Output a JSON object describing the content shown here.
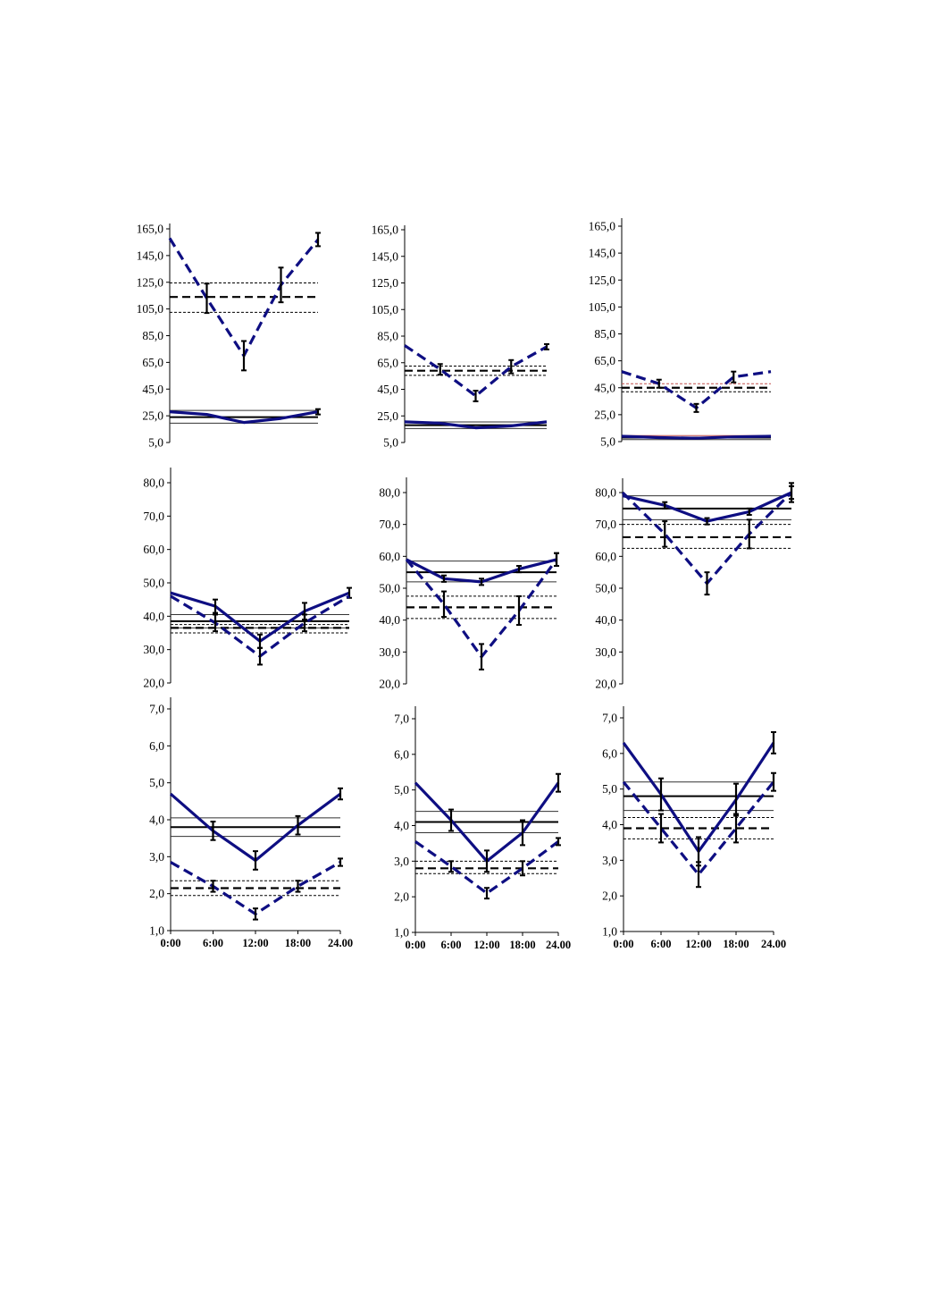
{
  "colors": {
    "series": "#0e0e82",
    "axis": "#000000",
    "ref": "#000000",
    "ref_alt": "#c0504d"
  },
  "x_tick_labels": [
    "0:00",
    "6:00",
    "12:00",
    "18:00",
    "24.00"
  ],
  "chart_data": [
    {
      "type": "line",
      "x": [
        0,
        6,
        12,
        18,
        24
      ],
      "ylim": [
        5,
        165
      ],
      "yticks": [
        "5,0",
        "25,0",
        "45,0",
        "65,0",
        "85,0",
        "105,0",
        "125,0",
        "145,0",
        "165,0"
      ],
      "series": [
        {
          "style": "dashed",
          "values": [
            158,
            113,
            70,
            123,
            157
          ],
          "err": [
            0,
            11,
            11,
            13,
            5
          ]
        },
        {
          "style": "solid",
          "values": [
            28,
            26,
            20,
            23,
            28
          ],
          "err": [
            0,
            0,
            0,
            0,
            2
          ]
        }
      ],
      "reference_lines": [
        {
          "value": 114,
          "style": "dashed-bold"
        },
        {
          "value": 124.5,
          "style": "dotted"
        },
        {
          "value": 102.5,
          "style": "dotted"
        },
        {
          "value": 24,
          "style": "solid-bold"
        },
        {
          "value": 29,
          "style": "solid-thin"
        },
        {
          "value": 19.5,
          "style": "solid-thin"
        }
      ]
    },
    {
      "type": "line",
      "x": [
        0,
        6,
        12,
        18,
        24
      ],
      "ylim": [
        5,
        165
      ],
      "yticks": [
        "5,0",
        "25,0",
        "45,0",
        "65,0",
        "85,0",
        "105,0",
        "125,0",
        "145,0",
        "165,0"
      ],
      "series": [
        {
          "style": "dashed",
          "values": [
            78,
            60,
            40,
            62,
            77
          ],
          "err": [
            0,
            4,
            4,
            5,
            2
          ]
        },
        {
          "style": "solid",
          "values": [
            20.5,
            19.5,
            16,
            17.5,
            20.5
          ],
          "err": [
            0,
            0,
            0,
            0,
            0
          ]
        }
      ],
      "reference_lines": [
        {
          "value": 59,
          "style": "dashed-bold"
        },
        {
          "value": 62.5,
          "style": "dotted"
        },
        {
          "value": 55.5,
          "style": "dotted"
        },
        {
          "value": 18,
          "style": "solid-bold"
        },
        {
          "value": 20.5,
          "style": "solid-thin"
        },
        {
          "value": 15.5,
          "style": "solid-thin"
        }
      ]
    },
    {
      "type": "line",
      "x": [
        0,
        6,
        12,
        18,
        24
      ],
      "ylim": [
        5,
        165
      ],
      "yticks": [
        "5,0",
        "25,0",
        "45,0",
        "65,0",
        "85,0",
        "105,0",
        "125,0",
        "145,0",
        "165,0"
      ],
      "series": [
        {
          "style": "dashed",
          "values": [
            57,
            48,
            30,
            53,
            57
          ],
          "err": [
            0,
            3,
            3,
            4,
            0
          ]
        },
        {
          "style": "solid",
          "values": [
            9,
            8,
            7.5,
            8.5,
            9
          ],
          "err": [
            0,
            0,
            0,
            0,
            0
          ]
        }
      ],
      "reference_lines": [
        {
          "value": 45,
          "style": "dashed-bold"
        },
        {
          "value": 48,
          "style": "dotted-red"
        },
        {
          "value": 42,
          "style": "dotted"
        },
        {
          "value": 8,
          "style": "solid-bold"
        },
        {
          "value": 9.5,
          "style": "solid-red"
        },
        {
          "value": 6.5,
          "style": "solid-thin"
        }
      ]
    },
    {
      "type": "line",
      "x": [
        0,
        6,
        12,
        18,
        24
      ],
      "ylim": [
        20,
        80
      ],
      "yticks": [
        "20,0",
        "30,0",
        "40,0",
        "50,0",
        "60,0",
        "70,0",
        "80,0"
      ],
      "series": [
        {
          "style": "solid",
          "values": [
            47,
            43,
            32.5,
            41.5,
            47
          ],
          "err": [
            0,
            2,
            2,
            2.5,
            1.5
          ]
        },
        {
          "style": "dashed",
          "values": [
            46,
            38,
            28,
            38,
            46
          ],
          "err": [
            0,
            2.5,
            2.5,
            2.5,
            0
          ]
        }
      ],
      "reference_lines": [
        {
          "value": 38.5,
          "style": "solid-bold"
        },
        {
          "value": 40.5,
          "style": "solid-thin"
        },
        {
          "value": 36.5,
          "style": "solid-thin"
        },
        {
          "value": 36.5,
          "style": "dashed-bold"
        },
        {
          "value": 37.5,
          "style": "dotted"
        },
        {
          "value": 35,
          "style": "dotted"
        }
      ]
    },
    {
      "type": "line",
      "x": [
        0,
        6,
        12,
        18,
        24
      ],
      "ylim": [
        20,
        80
      ],
      "yticks": [
        "20,0",
        "30,0",
        "40,0",
        "50,0",
        "60,0",
        "70,0",
        "80,0"
      ],
      "series": [
        {
          "style": "solid",
          "values": [
            59,
            53,
            52,
            56,
            59
          ],
          "err": [
            0,
            1,
            1,
            1,
            2
          ]
        },
        {
          "style": "dashed",
          "values": [
            59,
            45,
            28.5,
            43,
            59
          ],
          "err": [
            0,
            4,
            4,
            4.5,
            2
          ]
        }
      ],
      "reference_lines": [
        {
          "value": 55,
          "style": "solid-bold"
        },
        {
          "value": 58.5,
          "style": "solid-thin"
        },
        {
          "value": 52,
          "style": "solid-thin"
        },
        {
          "value": 44,
          "style": "dashed-bold"
        },
        {
          "value": 47.5,
          "style": "dotted"
        },
        {
          "value": 40.5,
          "style": "dotted"
        }
      ]
    },
    {
      "type": "line",
      "x": [
        0,
        6,
        12,
        18,
        24
      ],
      "ylim": [
        20,
        80
      ],
      "yticks": [
        "20,0",
        "30,0",
        "40,0",
        "50,0",
        "60,0",
        "70,0",
        "80,0"
      ],
      "series": [
        {
          "style": "solid",
          "values": [
            79,
            76,
            71,
            74,
            80
          ],
          "err": [
            0,
            1,
            1,
            1,
            2
          ]
        },
        {
          "style": "dashed",
          "values": [
            80,
            67,
            51.5,
            67,
            80
          ],
          "err": [
            0,
            4,
            3.5,
            4.5,
            3
          ]
        }
      ],
      "reference_lines": [
        {
          "value": 75,
          "style": "solid-bold"
        },
        {
          "value": 79,
          "style": "solid-thin"
        },
        {
          "value": 71.5,
          "style": "solid-thin"
        },
        {
          "value": 66,
          "style": "dashed-bold"
        },
        {
          "value": 70,
          "style": "dotted"
        },
        {
          "value": 62.5,
          "style": "dotted"
        }
      ]
    },
    {
      "type": "line",
      "x": [
        0,
        6,
        12,
        18,
        24
      ],
      "ylim": [
        1,
        7
      ],
      "yticks": [
        "1,0",
        "2,0",
        "3,0",
        "4,0",
        "5,0",
        "6,0",
        "7,0"
      ],
      "series": [
        {
          "style": "solid",
          "values": [
            4.7,
            3.7,
            2.9,
            3.85,
            4.7
          ],
          "err": [
            0,
            0.25,
            0.25,
            0.25,
            0.15
          ]
        },
        {
          "style": "dashed",
          "values": [
            2.85,
            2.2,
            1.45,
            2.2,
            2.85
          ],
          "err": [
            0,
            0.15,
            0.15,
            0.15,
            0.1
          ]
        }
      ],
      "reference_lines": [
        {
          "value": 3.8,
          "style": "solid-bold"
        },
        {
          "value": 4.05,
          "style": "solid-thin"
        },
        {
          "value": 3.55,
          "style": "solid-thin"
        },
        {
          "value": 2.15,
          "style": "dashed-bold"
        },
        {
          "value": 2.35,
          "style": "dotted"
        },
        {
          "value": 1.95,
          "style": "dotted"
        }
      ]
    },
    {
      "type": "line",
      "x": [
        0,
        6,
        12,
        18,
        24
      ],
      "ylim": [
        1,
        7
      ],
      "yticks": [
        "1,0",
        "2,0",
        "3,0",
        "4,0",
        "5,0",
        "6,0",
        "7,0"
      ],
      "series": [
        {
          "style": "solid",
          "values": [
            5.2,
            4.15,
            3,
            3.8,
            5.2
          ],
          "err": [
            0,
            0.3,
            0.3,
            0.35,
            0.25
          ]
        },
        {
          "style": "dashed",
          "values": [
            3.55,
            2.85,
            2.1,
            2.8,
            3.55
          ],
          "err": [
            0,
            0.15,
            0.15,
            0.2,
            0.1
          ]
        }
      ],
      "reference_lines": [
        {
          "value": 4.1,
          "style": "solid-bold"
        },
        {
          "value": 4.4,
          "style": "solid-thin"
        },
        {
          "value": 3.8,
          "style": "solid-thin"
        },
        {
          "value": 2.8,
          "style": "dashed-bold"
        },
        {
          "value": 3,
          "style": "dotted"
        },
        {
          "value": 2.65,
          "style": "dotted"
        }
      ]
    },
    {
      "type": "line",
      "x": [
        0,
        6,
        12,
        18,
        24
      ],
      "ylim": [
        1,
        7
      ],
      "yticks": [
        "1,0",
        "2,0",
        "3,0",
        "4,0",
        "5,0",
        "6,0",
        "7,0"
      ],
      "series": [
        {
          "style": "solid",
          "values": [
            6.3,
            4.85,
            3.25,
            4.7,
            6.3
          ],
          "err": [
            0,
            0.45,
            0.4,
            0.45,
            0.3
          ]
        },
        {
          "style": "dashed",
          "values": [
            5.2,
            3.9,
            2.6,
            3.9,
            5.2
          ],
          "err": [
            0,
            0.4,
            0.35,
            0.4,
            0.25
          ]
        }
      ],
      "reference_lines": [
        {
          "value": 4.8,
          "style": "solid-bold"
        },
        {
          "value": 5.2,
          "style": "solid-thin"
        },
        {
          "value": 4.4,
          "style": "solid-thin"
        },
        {
          "value": 3.9,
          "style": "dashed-bold"
        },
        {
          "value": 4.2,
          "style": "dotted"
        },
        {
          "value": 3.6,
          "style": "dotted"
        }
      ]
    }
  ]
}
